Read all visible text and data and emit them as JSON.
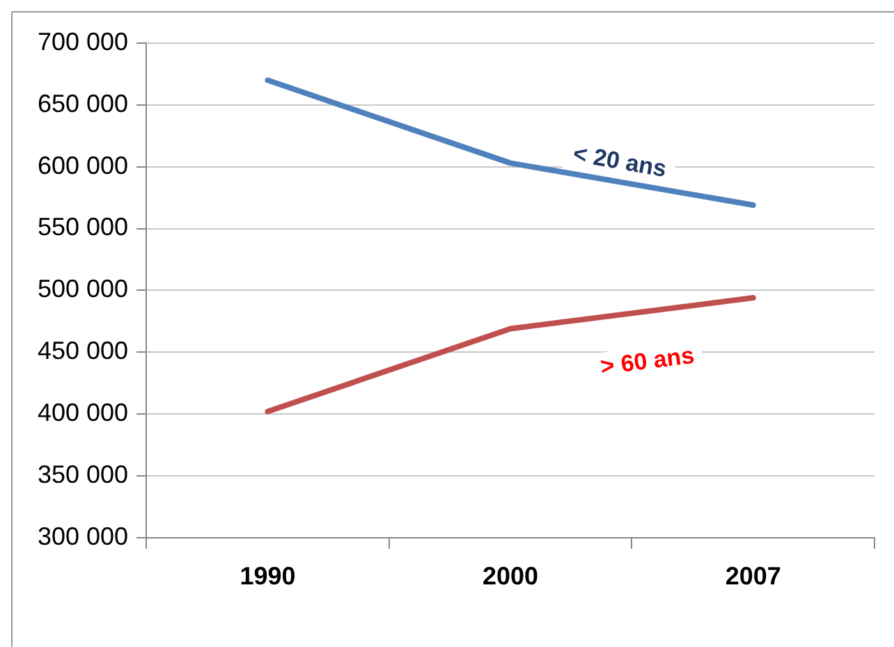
{
  "chart_data": {
    "type": "line",
    "categories": [
      "1990",
      "2000",
      "2007"
    ],
    "series": [
      {
        "name": "< 20 ans",
        "color": "#4f81bd",
        "values": [
          670000,
          603000,
          569000
        ]
      },
      {
        "name": "> 60 ans",
        "color": "#c0504d",
        "values": [
          402000,
          469000,
          494000
        ]
      }
    ],
    "ylim": [
      300000,
      700000
    ],
    "yticks": [
      {
        "value": 300000,
        "label": "300 000"
      },
      {
        "value": 350000,
        "label": "350 000"
      },
      {
        "value": 400000,
        "label": "400 000"
      },
      {
        "value": 450000,
        "label": "450 000"
      },
      {
        "value": 500000,
        "label": "500 000"
      },
      {
        "value": 550000,
        "label": "550 000"
      },
      {
        "value": 600000,
        "label": "600 000"
      },
      {
        "value": 650000,
        "label": "650 000"
      },
      {
        "value": 700000,
        "label": "700 000"
      }
    ],
    "grid": "y",
    "legend": false,
    "marker": "none",
    "line_style": "solid"
  }
}
